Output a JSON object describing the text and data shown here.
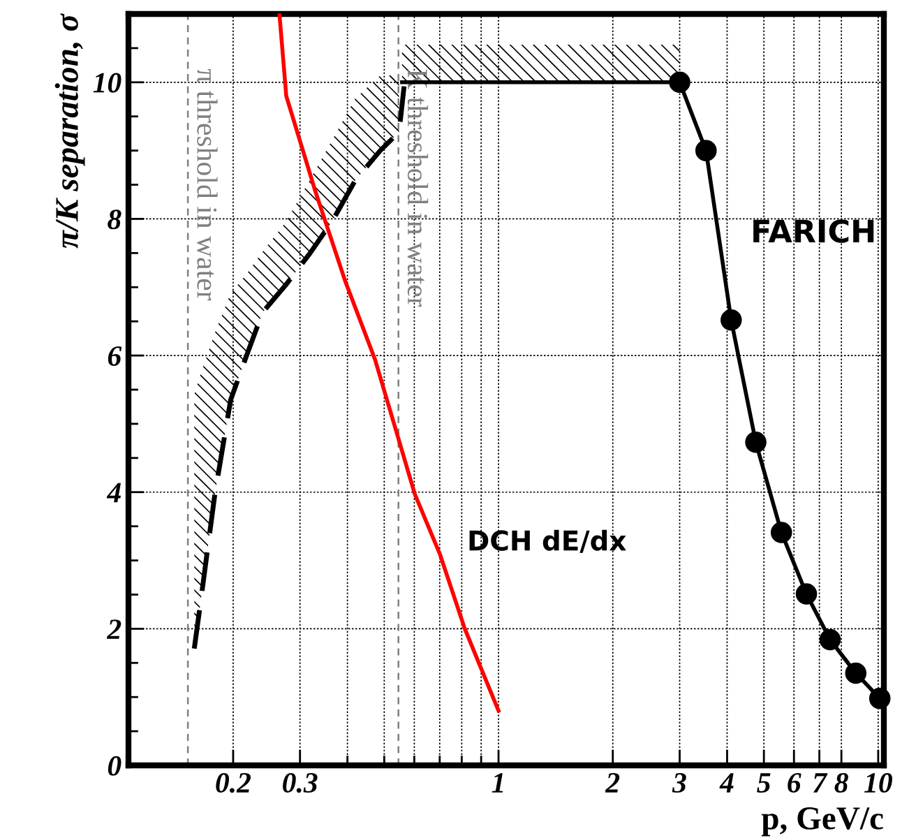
{
  "chart_data": {
    "type": "line",
    "xlabel": "p, GeV/c",
    "ylabel": "π/K separation, σ",
    "log": "x",
    "grid": true,
    "legend": false,
    "xlim": [
      0.106,
      10.35
    ],
    "ylim": [
      0,
      11
    ],
    "xticks": [
      0.2,
      0.3,
      {
        "value": 0.4,
        "label": null
      },
      {
        "value": 0.5,
        "label": null
      },
      {
        "value": 0.6,
        "label": null
      },
      {
        "value": 0.7,
        "label": null
      },
      {
        "value": 0.8,
        "label": null
      },
      {
        "value": 0.9,
        "label": null
      },
      1,
      2,
      3,
      4,
      5,
      6,
      7,
      8,
      10
    ],
    "yticks": [
      0,
      {
        "value": 0.5,
        "label": null
      },
      {
        "value": 1,
        "label": null
      },
      {
        "value": 1.5,
        "label": null
      },
      2,
      {
        "value": 2.5,
        "label": null
      },
      {
        "value": 3,
        "label": null
      },
      {
        "value": 3.5,
        "label": null
      },
      4,
      {
        "value": 4.5,
        "label": null
      },
      {
        "value": 5,
        "label": null
      },
      {
        "value": 5.5,
        "label": null
      },
      6,
      {
        "value": 6.5,
        "label": null
      },
      {
        "value": 7,
        "label": null
      },
      {
        "value": 7.5,
        "label": null
      },
      8,
      {
        "value": 8.5,
        "label": null
      },
      {
        "value": 9,
        "label": null
      },
      {
        "value": 9.5,
        "label": null
      },
      10,
      {
        "value": 10.5,
        "label": null
      }
    ],
    "series": [
      {
        "color": "#000000",
        "line_style": "dashed",
        "marker": "none",
        "x": [
          0.158,
          0.164,
          0.179,
          0.197,
          0.216,
          0.239,
          0.275,
          0.319,
          0.366,
          0.419,
          0.488,
          0.547,
          0.564
        ],
        "values": [
          1.71,
          2.37,
          3.97,
          5.35,
          5.97,
          6.63,
          7.03,
          7.5,
          7.98,
          8.56,
          9.0,
          9.27,
          9.94
        ],
        "lower": [
          1.71,
          2.37,
          3.97,
          5.35,
          5.97,
          6.63,
          7.03,
          7.5,
          7.98,
          8.56,
          9.0,
          9.27,
          null
        ],
        "upper": [
          5.43,
          5.72,
          6.33,
          6.91,
          7.18,
          7.52,
          7.95,
          8.58,
          9.17,
          9.76,
          10.1,
          10.1,
          null
        ]
      },
      {
        "color": "#000000",
        "line_style": "solid",
        "x": [
          0.557,
          3.0
        ],
        "values": [
          10,
          10
        ],
        "lower": [
          10,
          10
        ],
        "upper": [
          10.55,
          10.55
        ]
      },
      {
        "name": "FARICH",
        "color": "#000000",
        "line_style": "solid",
        "marker": "circle",
        "x": [
          3.0,
          3.52,
          4.1,
          4.76,
          5.56,
          6.47,
          7.47,
          8.73,
          10.1
        ],
        "values": [
          10,
          9.0,
          6.52,
          4.73,
          3.41,
          2.51,
          1.84,
          1.35,
          0.98
        ]
      },
      {
        "name": "DCH dE/dx",
        "color": "#ff0000",
        "line_style": "solid",
        "marker": "none",
        "x": [
          0.265,
          0.276,
          0.329,
          0.394,
          0.473,
          0.602,
          0.701,
          0.815,
          1.0
        ],
        "values": [
          10.98,
          9.8,
          8.41,
          7.1,
          5.94,
          3.97,
          3.09,
          2.0,
          0.8
        ]
      }
    ],
    "ref_lines": [
      {
        "axis": "x",
        "value": 0.152,
        "label": "π threshold in water",
        "color": "#808080",
        "line_style": "dashed"
      },
      {
        "axis": "x",
        "value": 0.545,
        "label": "K threshold in water",
        "color": "#808080",
        "line_style": "dashed"
      }
    ]
  }
}
